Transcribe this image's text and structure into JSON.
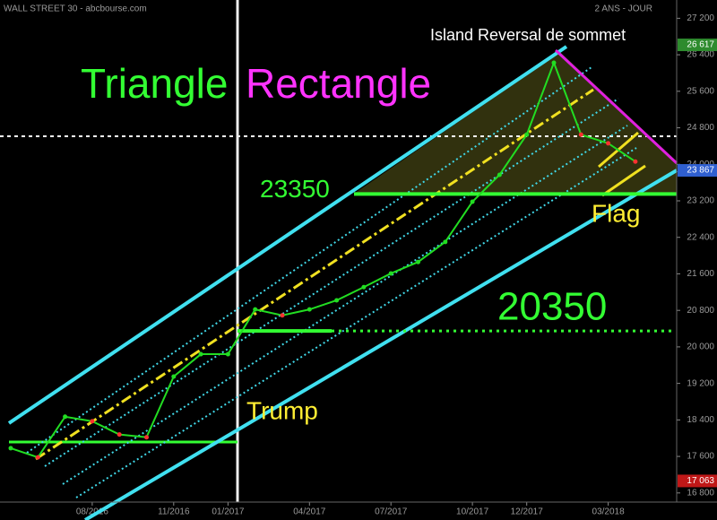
{
  "chart_data": {
    "type": "line",
    "header": "WALL STREET 30 - abcbourse.com",
    "period": "2 ANS - JOUR",
    "categories": [
      null,
      null,
      null,
      "08/2016",
      null,
      null,
      "11/2016",
      null,
      "01/2017",
      null,
      null,
      "04/2017",
      null,
      null,
      "07/2017",
      null,
      null,
      "10/2017",
      null,
      "12/2017",
      null,
      null,
      "03/2018",
      null
    ],
    "values": [
      17780,
      17580,
      18470,
      18370,
      18080,
      18020,
      19350,
      19840,
      19840,
      20820,
      20690,
      20820,
      21020,
      21310,
      21610,
      21860,
      22300,
      23180,
      23770,
      24650,
      26225,
      24650,
      24460,
      24060
    ],
    "color": "#22dd22",
    "ylim": [
      16600,
      27600
    ],
    "yticks": [
      {
        "value": 16800,
        "label": "16 800"
      },
      {
        "value": 17600,
        "label": "17 600"
      },
      {
        "value": 18400,
        "label": "18 400"
      },
      {
        "value": 19200,
        "label": "19 200"
      },
      {
        "value": 20000,
        "label": "20 000"
      },
      {
        "value": 20800,
        "label": "20 800"
      },
      {
        "value": 21600,
        "label": "21 600"
      },
      {
        "value": 22400,
        "label": "22 400"
      },
      {
        "value": 23200,
        "label": "23 200"
      },
      {
        "value": 24000,
        "label": "24 000"
      },
      {
        "value": 24800,
        "label": "24 800"
      },
      {
        "value": 25600,
        "label": "25 600"
      },
      {
        "value": 26400,
        "label": "26 400"
      },
      {
        "value": 27200,
        "label": "27 200"
      }
    ],
    "price_markers": [
      {
        "value": 26617,
        "label": "26 617",
        "color": "#2e8b2e"
      },
      {
        "value": 23867,
        "label": "23 867",
        "color": "#2f5fd0"
      },
      {
        "value": 17063,
        "label": "17 063",
        "color": "#c01818"
      }
    ],
    "levels": [
      23350,
      20350
    ],
    "annotations": {
      "triangle": "Triangle",
      "rectangle": "Rectangle",
      "island": "Island Reversal de sommet",
      "flag": "Flag",
      "trump": "Trump"
    }
  }
}
